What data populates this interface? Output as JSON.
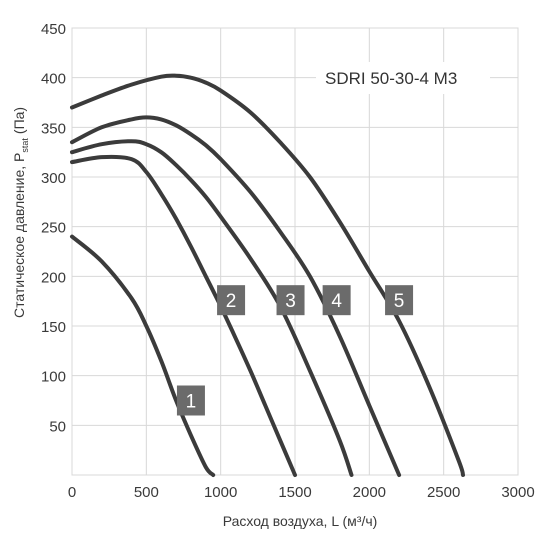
{
  "chart_data": {
    "type": "line",
    "title": "SDRI 50-30-4 M3",
    "xlabel": "Расход воздуха, L (м³/ч)",
    "ylabel": "Статическое давление, P",
    "ylabel_sub": "stat",
    "ylabel_unit": "(Па)",
    "xlim": [
      0,
      3000
    ],
    "ylim": [
      0,
      450
    ],
    "xticks": [
      0,
      500,
      1000,
      1500,
      2000,
      2500,
      3000
    ],
    "yticks": [
      50,
      100,
      150,
      200,
      250,
      300,
      350,
      400,
      450
    ],
    "grid": true,
    "series": [
      {
        "name": "1",
        "x": [
          0,
          200,
          400,
          500,
          600,
          700,
          800,
          900,
          950
        ],
        "y": [
          240,
          215,
          178,
          150,
          115,
          75,
          40,
          8,
          0
        ]
      },
      {
        "name": "2",
        "x": [
          0,
          200,
          400,
          500,
          600,
          700,
          800,
          900,
          1000,
          1100,
          1200,
          1300,
          1400,
          1500
        ],
        "y": [
          315,
          320,
          318,
          305,
          283,
          258,
          230,
          200,
          170,
          138,
          105,
          70,
          35,
          0
        ]
      },
      {
        "name": "3",
        "x": [
          0,
          200,
          400,
          500,
          600,
          700,
          800,
          900,
          1000,
          1200,
          1400,
          1600,
          1800,
          1880
        ],
        "y": [
          325,
          333,
          336,
          333,
          325,
          312,
          297,
          280,
          260,
          218,
          170,
          105,
          35,
          0
        ]
      },
      {
        "name": "4",
        "x": [
          0,
          200,
          400,
          500,
          600,
          700,
          800,
          900,
          1000,
          1200,
          1400,
          1600,
          1800,
          2000,
          2200
        ],
        "y": [
          335,
          350,
          358,
          360,
          358,
          352,
          343,
          332,
          318,
          285,
          245,
          200,
          140,
          70,
          0
        ]
      },
      {
        "name": "5",
        "x": [
          0,
          200,
          400,
          600,
          700,
          800,
          900,
          1000,
          1200,
          1400,
          1600,
          1800,
          2000,
          2200,
          2400,
          2600,
          2630
        ],
        "y": [
          370,
          382,
          393,
          401,
          402,
          400,
          395,
          387,
          365,
          335,
          300,
          255,
          205,
          155,
          90,
          15,
          0
        ]
      }
    ],
    "label_points": [
      {
        "name": "1",
        "x": 800,
        "y": 75
      },
      {
        "name": "2",
        "x": 1070,
        "y": 176
      },
      {
        "name": "3",
        "x": 1470,
        "y": 176
      },
      {
        "name": "4",
        "x": 1780,
        "y": 176
      },
      {
        "name": "5",
        "x": 2200,
        "y": 176
      }
    ]
  }
}
